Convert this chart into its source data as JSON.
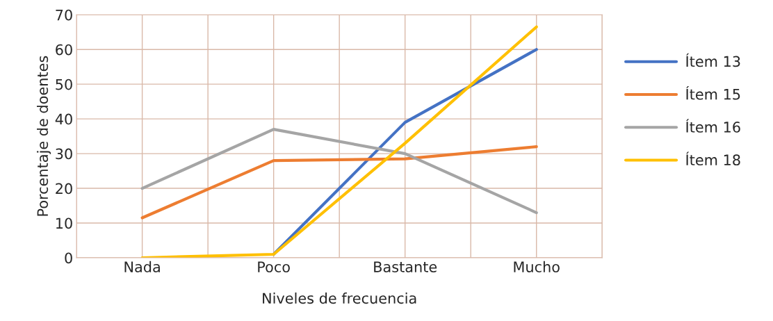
{
  "chart_data": {
    "type": "line",
    "xlabel": "Niveles de frecuencia",
    "ylabel": "Porcentaje de doentes",
    "categories": [
      "Nada",
      "Poco",
      "Bastante",
      "Mucho"
    ],
    "series": [
      {
        "name": "Ítem 13",
        "color": "#4472c4",
        "values": [
          null,
          1,
          39,
          60
        ]
      },
      {
        "name": "Ítem 15",
        "color": "#ed7d31",
        "values": [
          11.5,
          28,
          28.5,
          32
        ]
      },
      {
        "name": "Ítem 16",
        "color": "#a5a5a5",
        "values": [
          20,
          37,
          30,
          13
        ]
      },
      {
        "name": "Ítem 18",
        "color": "#ffc000",
        "values": [
          0,
          1,
          33,
          66.5
        ]
      }
    ],
    "ylim": [
      0,
      70
    ],
    "yticks": [
      0,
      10,
      20,
      30,
      40,
      50,
      60,
      70
    ],
    "grid": true,
    "legend": "right",
    "marker": "none",
    "line_style": "solid"
  }
}
